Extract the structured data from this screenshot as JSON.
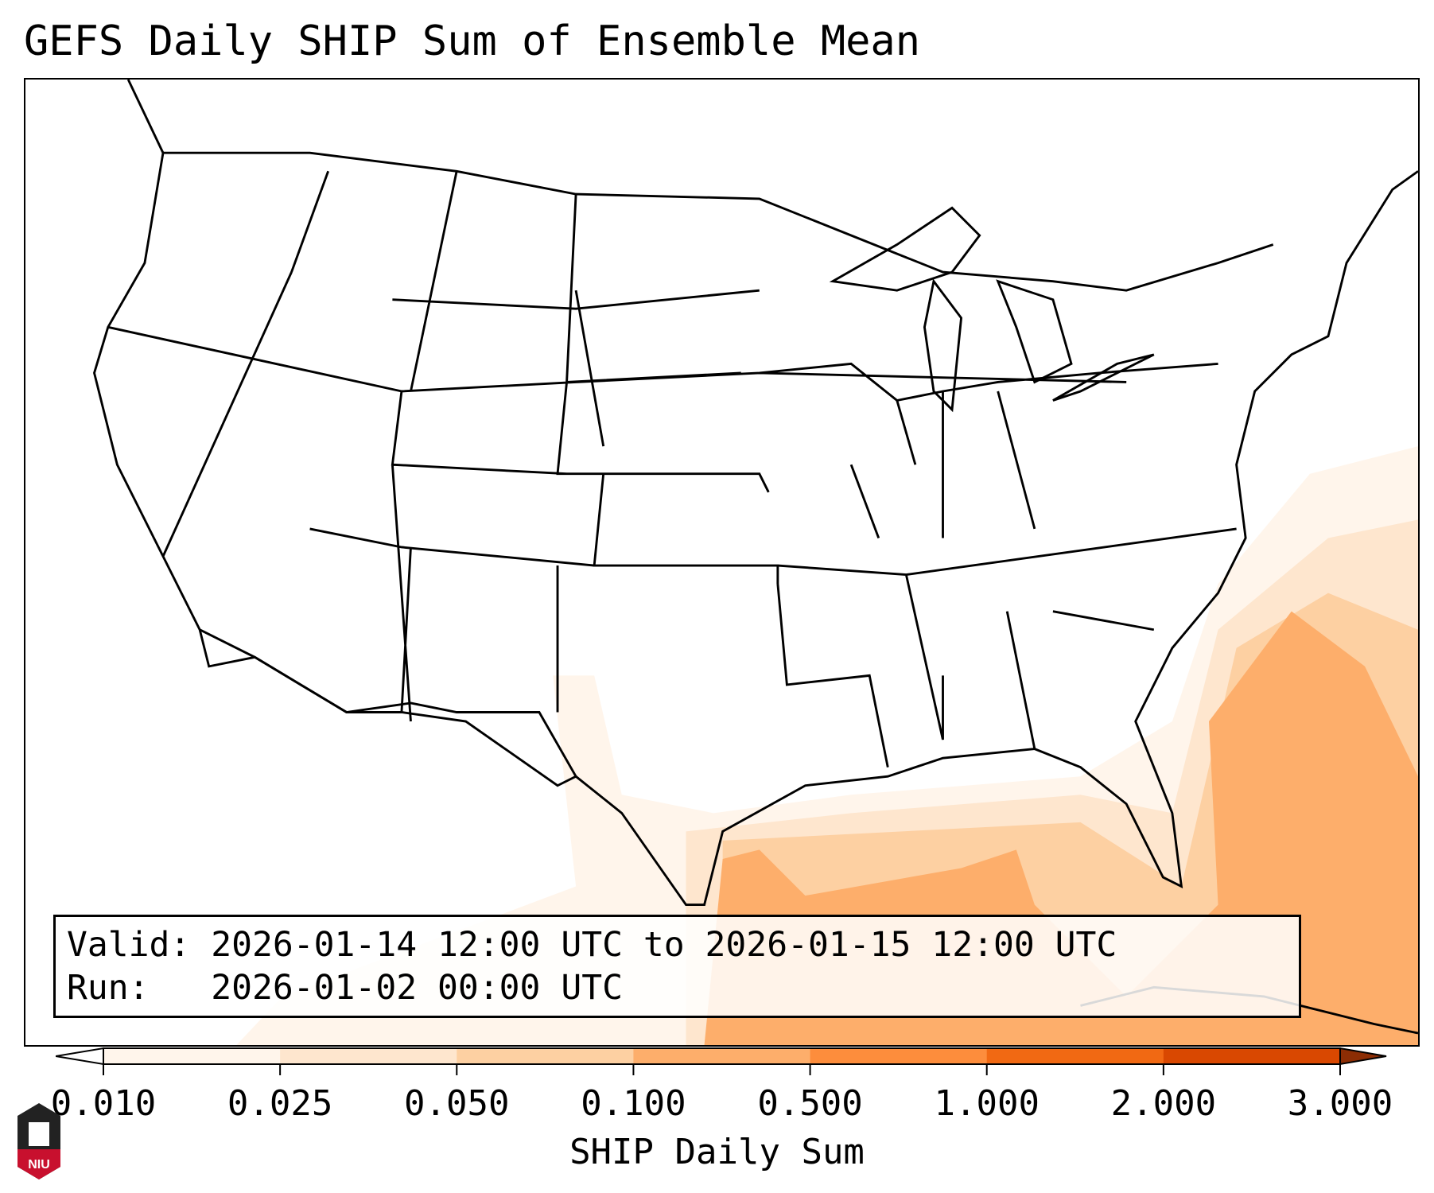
{
  "chart_data": {
    "type": "heatmap",
    "title": "GEFS Daily SHIP Sum of Ensemble Mean",
    "colorbar": {
      "label": "SHIP Daily Sum",
      "ticks": [
        "0.010",
        "0.025",
        "0.050",
        "0.100",
        "0.500",
        "1.000",
        "2.000",
        "3.000"
      ],
      "bins": [
        {
          "min": 0.01,
          "max": 0.025,
          "color": "#fff5eb"
        },
        {
          "min": 0.025,
          "max": 0.05,
          "color": "#fee6ce"
        },
        {
          "min": 0.05,
          "max": 0.1,
          "color": "#fdd0a2"
        },
        {
          "min": 0.1,
          "max": 0.5,
          "color": "#fdae6b"
        },
        {
          "min": 0.5,
          "max": 1.0,
          "color": "#fd8d3c"
        },
        {
          "min": 1.0,
          "max": 2.0,
          "color": "#f16913"
        },
        {
          "min": 2.0,
          "max": 3.0,
          "color": "#d94801"
        }
      ],
      "under_color": "#ffffff",
      "over_color": "#8c2d04",
      "extend": "both"
    },
    "regions": [
      {
        "area": "Gulf of Mexico / West Atlantic (outer)",
        "value_range": "0.010-0.025"
      },
      {
        "area": "Gulf of Mexico / West Atlantic",
        "value_range": "0.025-0.050"
      },
      {
        "area": "Central Gulf / Atlantic",
        "value_range": "0.050-0.100"
      },
      {
        "area": "Western Gulf, Eastern Gulf, SW Atlantic, Bahamas",
        "value_range": "0.100-0.500"
      }
    ]
  },
  "info": {
    "valid_line": "Valid: 2026-01-14 12:00 UTC to 2026-01-15 12:00 UTC",
    "run_line": "Run:   2026-01-02 00:00 UTC"
  },
  "logo": {
    "text": "NIU"
  }
}
